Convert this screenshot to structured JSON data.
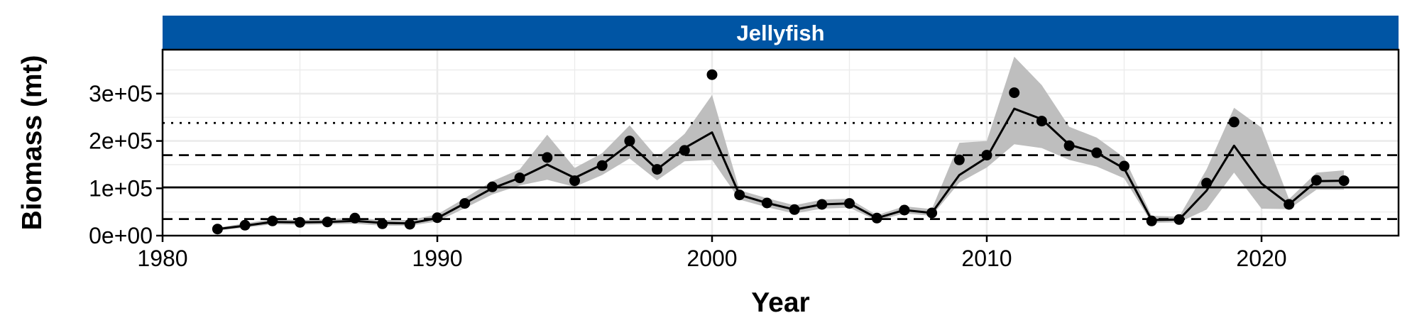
{
  "chart_data": {
    "type": "line",
    "panel_title": "Jellyfish",
    "xlabel": "Year",
    "ylabel": "Biomass (mt)",
    "xlim": [
      1980,
      2025
    ],
    "ylim": [
      0,
      400000
    ],
    "x_ticks": [
      1980,
      1990,
      2000,
      2010,
      2020
    ],
    "x_tick_labels": [
      "1980",
      "1990",
      "2000",
      "2010",
      "2020"
    ],
    "y_ticks": [
      0,
      100000,
      200000,
      300000
    ],
    "y_tick_labels": [
      "0e+00",
      "1e+05",
      "2e+05",
      "3e+05"
    ],
    "grid": true,
    "colors": {
      "strip": "#0055A4",
      "ribbon": "#BEBEBE",
      "line": "#000000",
      "grid": "#EBEBEB"
    },
    "reference_lines": [
      {
        "style": "dotted",
        "value": 238000
      },
      {
        "style": "dashed",
        "value": 170000
      },
      {
        "style": "solid",
        "value": 102000
      },
      {
        "style": "dashed",
        "value": 35000
      }
    ],
    "series": [
      {
        "kind": "observed_points",
        "x": [
          1982,
          1983,
          1984,
          1985,
          1986,
          1987,
          1988,
          1989,
          1990,
          1991,
          1992,
          1993,
          1994,
          1995,
          1996,
          1997,
          1998,
          1999,
          2000,
          2001,
          2002,
          2003,
          2004,
          2005,
          2006,
          2007,
          2008,
          2009,
          2010,
          2011,
          2012,
          2013,
          2014,
          2015,
          2016,
          2017,
          2018,
          2019,
          2020,
          2021,
          2022,
          2023
        ],
        "values": [
          14000,
          22000,
          31000,
          28000,
          29000,
          37000,
          25000,
          24000,
          38000,
          68000,
          103000,
          122000,
          165000,
          116000,
          148000,
          200000,
          140000,
          180000,
          340000,
          86000,
          69000,
          55000,
          66000,
          68000,
          37000,
          54000,
          48000,
          160000,
          170000,
          302000,
          242000,
          190000,
          175000,
          147000,
          31000,
          34000,
          111000,
          240000,
          null,
          66000,
          117000,
          116000
        ]
      },
      {
        "kind": "fitted_line",
        "x": [
          1982,
          1983,
          1984,
          1985,
          1986,
          1987,
          1988,
          1989,
          1990,
          1991,
          1992,
          1993,
          1994,
          1995,
          1996,
          1997,
          1998,
          1999,
          2000,
          2001,
          2002,
          2003,
          2004,
          2005,
          2006,
          2007,
          2008,
          2009,
          2010,
          2011,
          2012,
          2013,
          2014,
          2015,
          2016,
          2017,
          2018,
          2019,
          2020,
          2021,
          2022,
          2023
        ],
        "values": [
          14000,
          21000,
          29000,
          28000,
          29000,
          31000,
          27000,
          26000,
          37000,
          68000,
          100000,
          122000,
          150000,
          122000,
          150000,
          194000,
          140000,
          185000,
          218000,
          86000,
          69000,
          55000,
          66000,
          68000,
          37000,
          54000,
          48000,
          128000,
          165000,
          268000,
          246000,
          192000,
          175000,
          142000,
          33000,
          34000,
          95000,
          190000,
          110000,
          66000,
          115000,
          116000
        ],
        "lower": [
          11000,
          17000,
          24000,
          23000,
          24000,
          25000,
          21000,
          21000,
          30000,
          58000,
          87000,
          106000,
          118000,
          103000,
          128000,
          163000,
          117000,
          157000,
          160000,
          76000,
          60000,
          47000,
          57000,
          59000,
          32000,
          47000,
          42000,
          112000,
          144000,
          193000,
          185000,
          160000,
          146000,
          121000,
          27000,
          28000,
          55000,
          133000,
          57000,
          56000,
          97000,
          97000
        ],
        "upper": [
          17000,
          26000,
          35000,
          33000,
          35000,
          38000,
          33000,
          33000,
          45000,
          79000,
          115000,
          140000,
          213000,
          143000,
          174000,
          233000,
          165000,
          215000,
          297000,
          96000,
          79000,
          64000,
          76000,
          78000,
          43000,
          62000,
          56000,
          196000,
          200000,
          378000,
          318000,
          230000,
          207000,
          165000,
          42000,
          40000,
          140000,
          270000,
          228000,
          77000,
          133000,
          138000
        ]
      }
    ]
  }
}
